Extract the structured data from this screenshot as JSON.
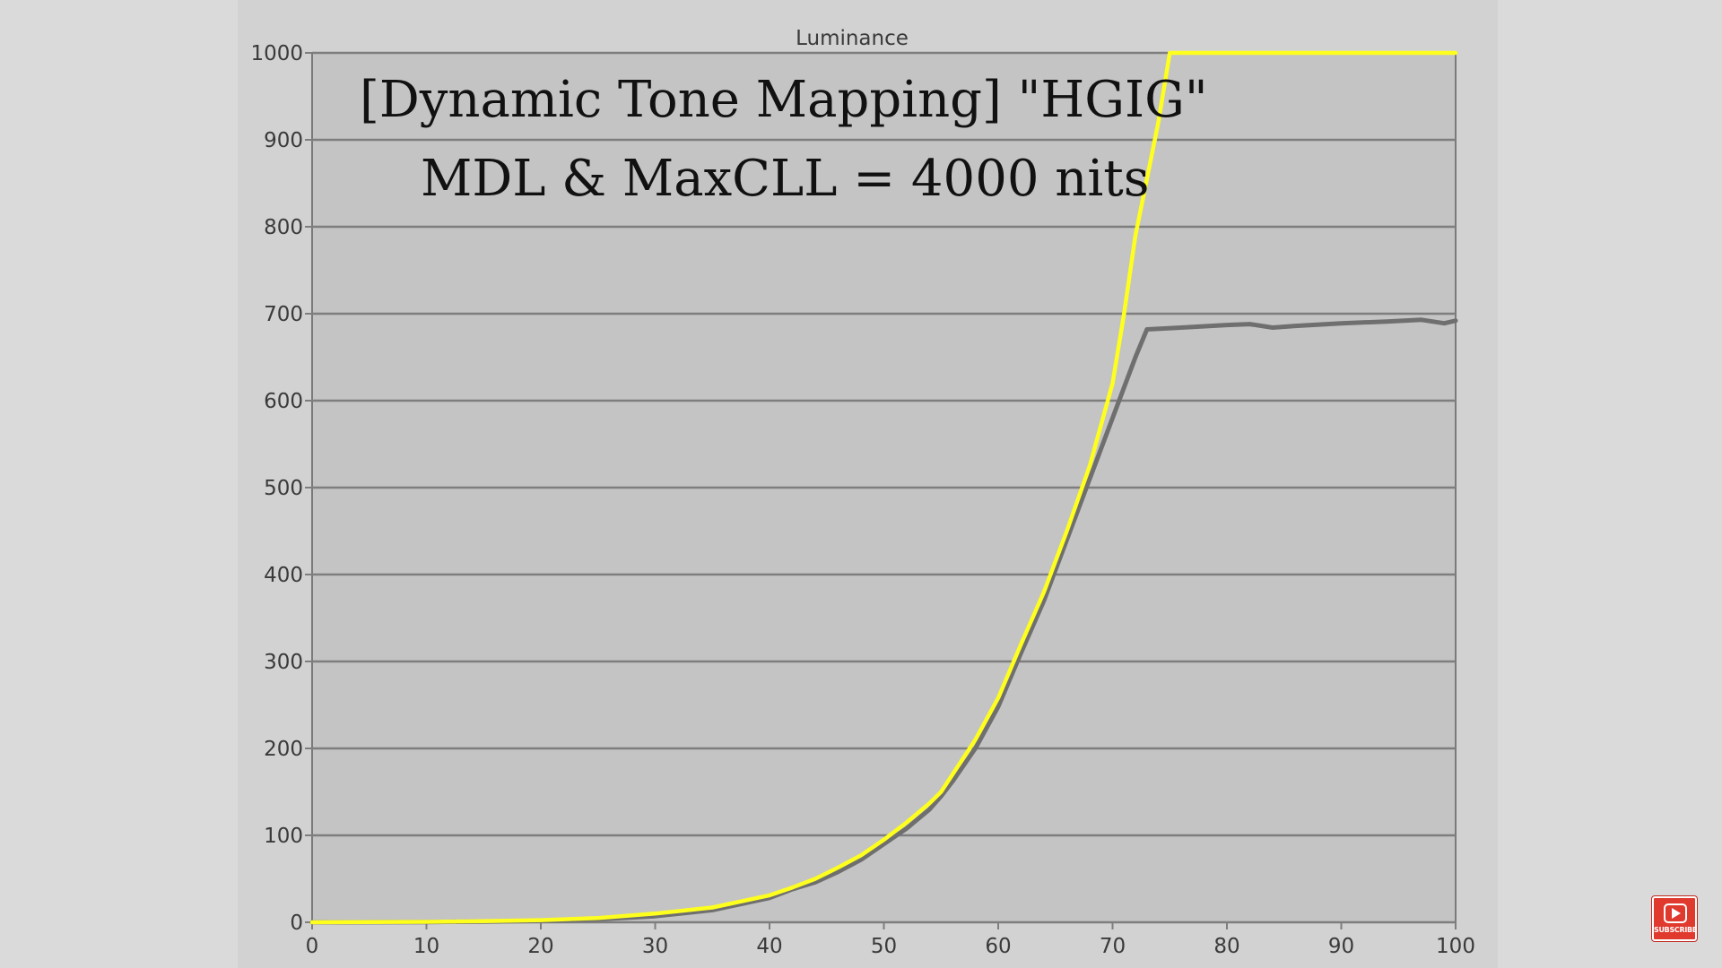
{
  "overlay": {
    "line1": "[Dynamic Tone Mapping] \"HGIG\"",
    "line2": "MDL & MaxCLL = 4000 nits"
  },
  "badge": {
    "label": "SUBSCRIBE",
    "icon": "play-icon",
    "color": "#e03a2f"
  },
  "chart_data": {
    "type": "line",
    "title": "Luminance",
    "xlabel": "",
    "ylabel": "",
    "xlim": [
      0,
      100
    ],
    "ylim": [
      0,
      1000
    ],
    "x_ticks": [
      0,
      10,
      20,
      30,
      40,
      50,
      60,
      70,
      80,
      90,
      100
    ],
    "y_ticks": [
      0,
      100,
      200,
      300,
      400,
      500,
      600,
      700,
      800,
      900,
      1000
    ],
    "grid": "horizontal",
    "legend": "none",
    "series": [
      {
        "color": "#6f6f6f",
        "points": [
          [
            0,
            0
          ],
          [
            5,
            0.1
          ],
          [
            10,
            0.3
          ],
          [
            15,
            0.8
          ],
          [
            20,
            1.7
          ],
          [
            25,
            3.5
          ],
          [
            30,
            7
          ],
          [
            35,
            14
          ],
          [
            40,
            28
          ],
          [
            42,
            38
          ],
          [
            44,
            46
          ],
          [
            46,
            58
          ],
          [
            48,
            72
          ],
          [
            50,
            90
          ],
          [
            52,
            108
          ],
          [
            54,
            130
          ],
          [
            55,
            145
          ],
          [
            56,
            162
          ],
          [
            58,
            200
          ],
          [
            60,
            248
          ],
          [
            62,
            310
          ],
          [
            64,
            370
          ],
          [
            66,
            440
          ],
          [
            68,
            510
          ],
          [
            70,
            580
          ],
          [
            72,
            650
          ],
          [
            73,
            682
          ],
          [
            76,
            684
          ],
          [
            80,
            687
          ],
          [
            82,
            688
          ],
          [
            84,
            684
          ],
          [
            86,
            686
          ],
          [
            90,
            689
          ],
          [
            94,
            691
          ],
          [
            97,
            693
          ],
          [
            99,
            689
          ],
          [
            100,
            692
          ]
        ]
      },
      {
        "color": "#ffff1e",
        "points": [
          [
            0,
            0
          ],
          [
            5,
            0.2
          ],
          [
            10,
            0.5
          ],
          [
            15,
            1.2
          ],
          [
            20,
            2.5
          ],
          [
            25,
            5
          ],
          [
            30,
            10
          ],
          [
            35,
            17
          ],
          [
            40,
            31
          ],
          [
            42,
            40
          ],
          [
            44,
            50
          ],
          [
            46,
            63
          ],
          [
            48,
            77
          ],
          [
            50,
            95
          ],
          [
            52,
            115
          ],
          [
            54,
            137
          ],
          [
            55,
            150
          ],
          [
            56,
            170
          ],
          [
            58,
            210
          ],
          [
            60,
            258
          ],
          [
            62,
            320
          ],
          [
            64,
            380
          ],
          [
            66,
            450
          ],
          [
            68,
            525
          ],
          [
            70,
            620
          ],
          [
            71,
            700
          ],
          [
            72,
            790
          ],
          [
            73,
            855
          ],
          [
            74,
            920
          ],
          [
            75,
            1000
          ],
          [
            100,
            1000
          ]
        ]
      }
    ]
  }
}
